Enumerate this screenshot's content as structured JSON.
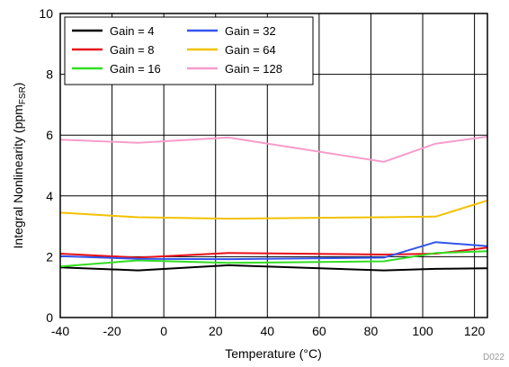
{
  "chart_data": {
    "type": "line",
    "xlabel": "Temperature (°C)",
    "ylabel_main": "Integral Nonlinearity (ppm",
    "ylabel_sub": "FSR",
    "ylabel_end": ")",
    "xlim": [
      -40,
      125
    ],
    "ylim": [
      0,
      10
    ],
    "x_ticks": [
      -40,
      -20,
      0,
      20,
      40,
      60,
      80,
      100,
      120
    ],
    "y_ticks": [
      0,
      2,
      4,
      6,
      8,
      10
    ],
    "grid": true,
    "legend_position": "top-left",
    "code_label": "D022",
    "series": [
      {
        "name": "Gain = 4",
        "color": "#000000",
        "x": [
          -40,
          -10,
          25,
          85,
          105,
          125
        ],
        "y": [
          1.65,
          1.55,
          1.72,
          1.55,
          1.6,
          1.62
        ]
      },
      {
        "name": "Gain = 8",
        "color": "#e8101a",
        "x": [
          -40,
          -10,
          25,
          85,
          105,
          125
        ],
        "y": [
          2.1,
          1.97,
          2.12,
          2.07,
          2.1,
          2.3
        ]
      },
      {
        "name": "Gain = 16",
        "color": "#33dd22",
        "x": [
          -40,
          -10,
          25,
          85,
          105,
          125
        ],
        "y": [
          1.68,
          1.88,
          1.8,
          1.85,
          2.12,
          2.18
        ]
      },
      {
        "name": "Gain = 32",
        "color": "#3355ee",
        "x": [
          -40,
          -10,
          25,
          85,
          105,
          125
        ],
        "y": [
          2.02,
          1.93,
          1.92,
          1.97,
          2.48,
          2.35
        ]
      },
      {
        "name": "Gain = 64",
        "color": "#f2c100",
        "x": [
          -40,
          -10,
          25,
          85,
          105,
          125
        ],
        "y": [
          3.45,
          3.3,
          3.25,
          3.3,
          3.32,
          3.85
        ]
      },
      {
        "name": "Gain = 128",
        "color": "#f79ccb",
        "x": [
          -40,
          -10,
          25,
          85,
          105,
          125
        ],
        "y": [
          5.85,
          5.75,
          5.92,
          5.12,
          5.72,
          5.95
        ]
      }
    ]
  }
}
